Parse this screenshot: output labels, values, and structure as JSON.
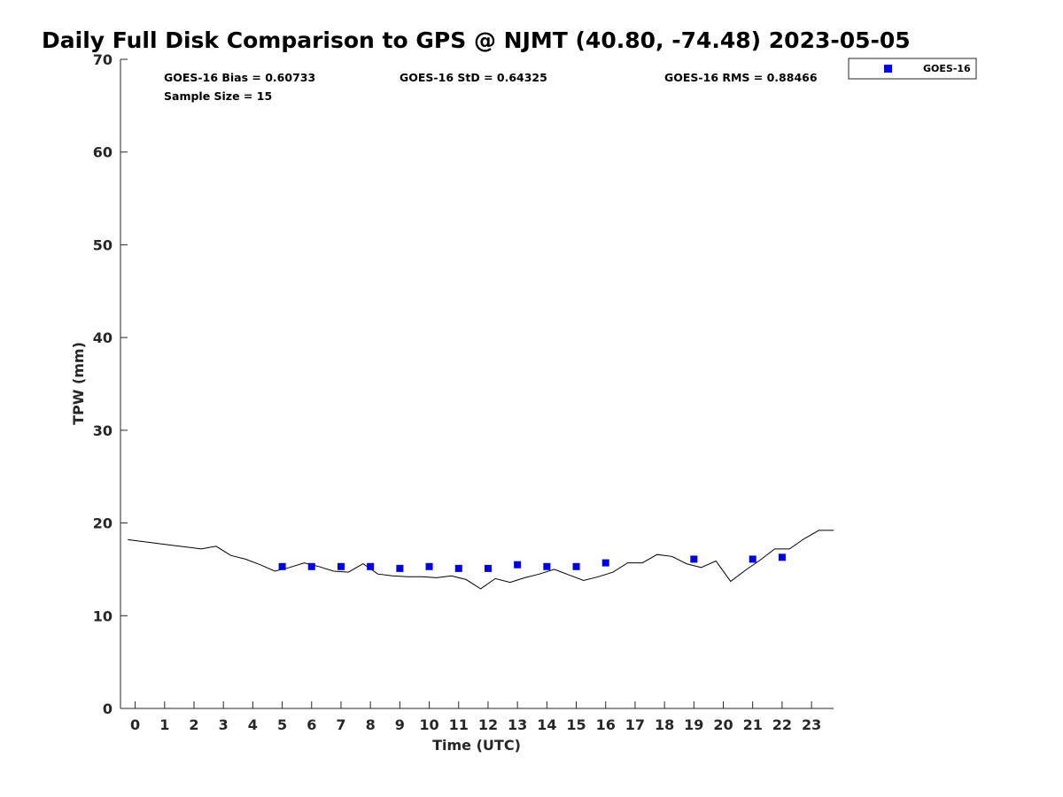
{
  "chart_data": {
    "type": "scatter",
    "title": "Daily Full Disk Comparison to GPS @ NJMT (40.80, -74.48) 2023-05-05",
    "xlabel": "Time (UTC)",
    "ylabel": "TPW (mm)",
    "xlim": [
      -0.5,
      23.75
    ],
    "ylim": [
      0,
      70
    ],
    "x_ticks": [
      0,
      1,
      2,
      3,
      4,
      5,
      6,
      7,
      8,
      9,
      10,
      11,
      12,
      13,
      14,
      15,
      16,
      17,
      18,
      19,
      20,
      21,
      22,
      23
    ],
    "y_ticks": [
      0,
      10,
      20,
      30,
      40,
      50,
      60,
      70
    ],
    "grid": false,
    "legend_position": "outside top-right",
    "stats": {
      "bias": "GOES-16 Bias = 0.60733",
      "std": "GOES-16 StD = 0.64325",
      "rms": "GOES-16 RMS = 0.88466",
      "sample": "Sample Size = 15"
    },
    "series": [
      {
        "name": "GOES-16",
        "kind": "scatter",
        "marker": "square",
        "color": "#0000e0",
        "x": [
          5,
          6,
          7,
          8,
          9,
          10,
          11,
          12,
          13,
          14,
          15,
          16,
          19,
          21,
          22
        ],
        "y": [
          15.3,
          15.3,
          15.3,
          15.3,
          15.1,
          15.3,
          15.1,
          15.1,
          15.5,
          15.3,
          15.3,
          15.7,
          16.1,
          16.1,
          16.3
        ]
      },
      {
        "kind": "line",
        "color": "#000000",
        "x": [
          -0.25,
          0.25,
          0.75,
          1.25,
          1.75,
          2.25,
          2.75,
          3.25,
          3.75,
          4.25,
          4.75,
          5.25,
          5.75,
          6.25,
          6.75,
          7.25,
          7.75,
          8.25,
          8.75,
          9.25,
          9.75,
          10.25,
          10.75,
          11.25,
          11.75,
          12.25,
          12.75,
          13.25,
          13.75,
          14.25,
          14.75,
          15.25,
          15.75,
          16.25,
          16.75,
          17.25,
          17.75,
          18.25,
          18.75,
          19.25,
          19.75,
          20.25,
          20.75,
          21.25,
          21.75,
          22.25,
          22.75,
          23.25,
          23.75
        ],
        "y": [
          18.2,
          18.0,
          17.8,
          17.6,
          17.4,
          17.2,
          17.5,
          16.5,
          16.1,
          15.5,
          14.8,
          15.2,
          15.7,
          15.3,
          14.8,
          14.7,
          15.6,
          14.5,
          14.3,
          14.2,
          14.2,
          14.1,
          14.3,
          13.9,
          12.9,
          14.0,
          13.6,
          14.1,
          14.5,
          15.0,
          14.4,
          13.8,
          14.2,
          14.7,
          15.7,
          15.7,
          16.6,
          16.4,
          15.6,
          15.2,
          15.9,
          13.7,
          14.9,
          16.0,
          17.2,
          17.2,
          18.3,
          19.2,
          19.2
        ]
      }
    ]
  }
}
